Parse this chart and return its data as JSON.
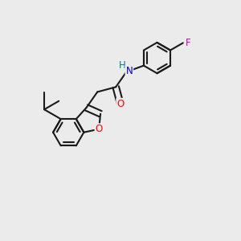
{
  "bg_color": "#ebebeb",
  "bond_color": "#1a1a1a",
  "bond_width": 1.5,
  "atom_colors": {
    "O": "#ff0000",
    "N": "#0000cd",
    "F": "#cc00cc",
    "H": "#008080",
    "C": "#1a1a1a"
  },
  "font_size": 8.5,
  "fig_size": [
    3.0,
    3.0
  ],
  "dpi": 100
}
